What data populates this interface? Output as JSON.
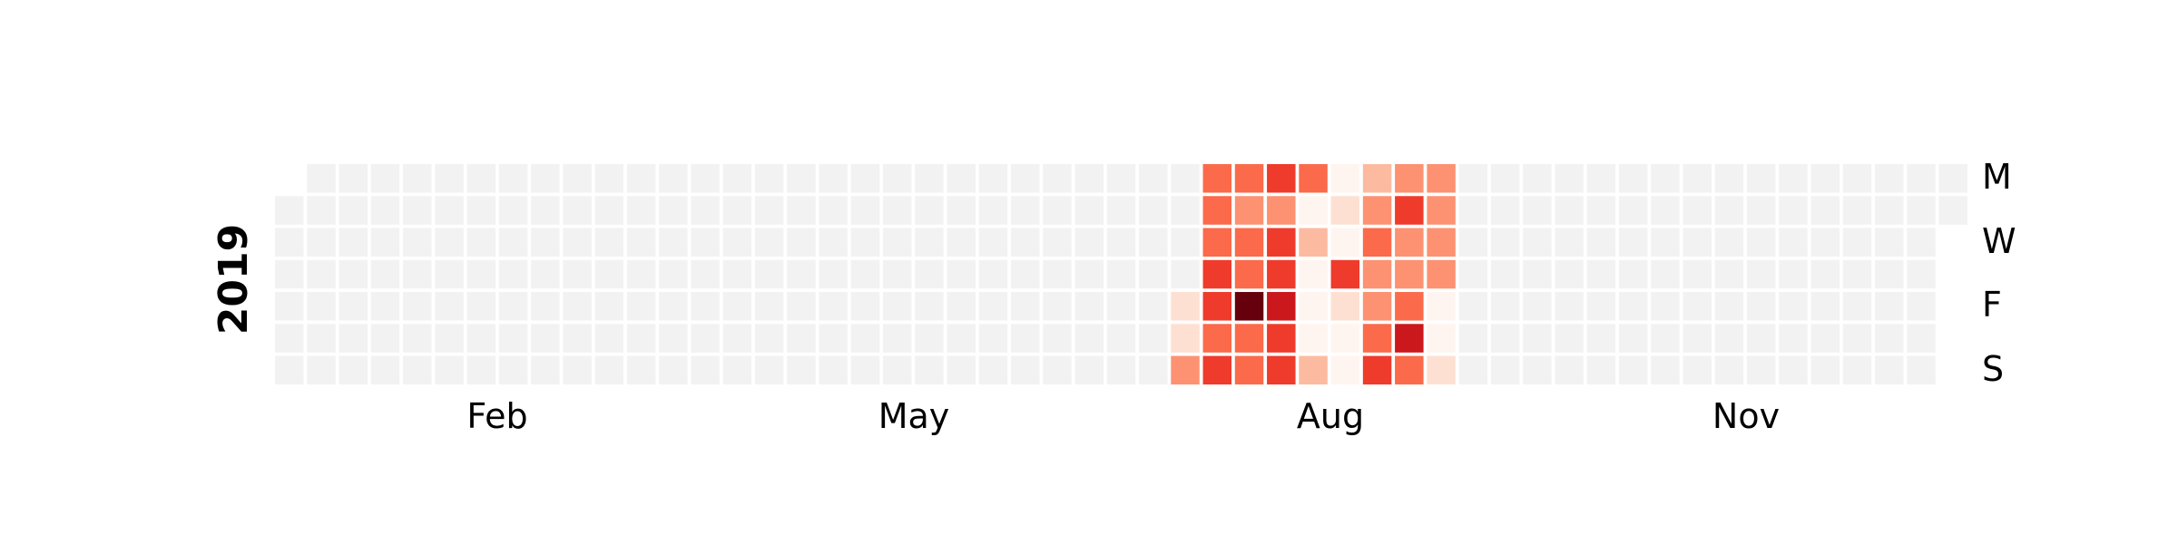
{
  "chart_data": {
    "type": "heatmap",
    "title": "",
    "year": "2019",
    "month_labels": [
      "Feb",
      "May",
      "Aug",
      "Nov"
    ],
    "day_labels": [
      "M",
      "W",
      "F",
      "S"
    ],
    "colors": {
      "empty": "#f2f2f2",
      "background": "#ffffff",
      "scale": [
        "#fff5f0",
        "#fee0d2",
        "#fcbba1",
        "#fc9272",
        "#fb6a4a",
        "#ef3b2c",
        "#cb181d",
        "#a50f15",
        "#67000d"
      ]
    },
    "value_scale": [
      0,
      8
    ],
    "active_weeks": [
      {
        "week": 28,
        "values": [
          null,
          null,
          null,
          null,
          1,
          1,
          3
        ]
      },
      {
        "week": 29,
        "values": [
          4,
          4,
          4,
          5,
          5,
          4,
          5
        ]
      },
      {
        "week": 30,
        "values": [
          4,
          3,
          4,
          4,
          8,
          4,
          4
        ]
      },
      {
        "week": 31,
        "values": [
          5,
          3,
          5,
          5,
          6,
          5,
          5
        ]
      },
      {
        "week": 32,
        "values": [
          4,
          0,
          2,
          0,
          0,
          0,
          2
        ]
      },
      {
        "week": 33,
        "values": [
          0,
          1,
          0,
          5,
          1,
          0,
          0
        ]
      },
      {
        "week": 34,
        "values": [
          2,
          3,
          4,
          3,
          3,
          4,
          5
        ]
      },
      {
        "week": 35,
        "values": [
          3,
          5,
          3,
          3,
          4,
          6,
          4
        ]
      },
      {
        "week": 36,
        "values": [
          3,
          3,
          3,
          3,
          0,
          0,
          1
        ]
      }
    ]
  }
}
